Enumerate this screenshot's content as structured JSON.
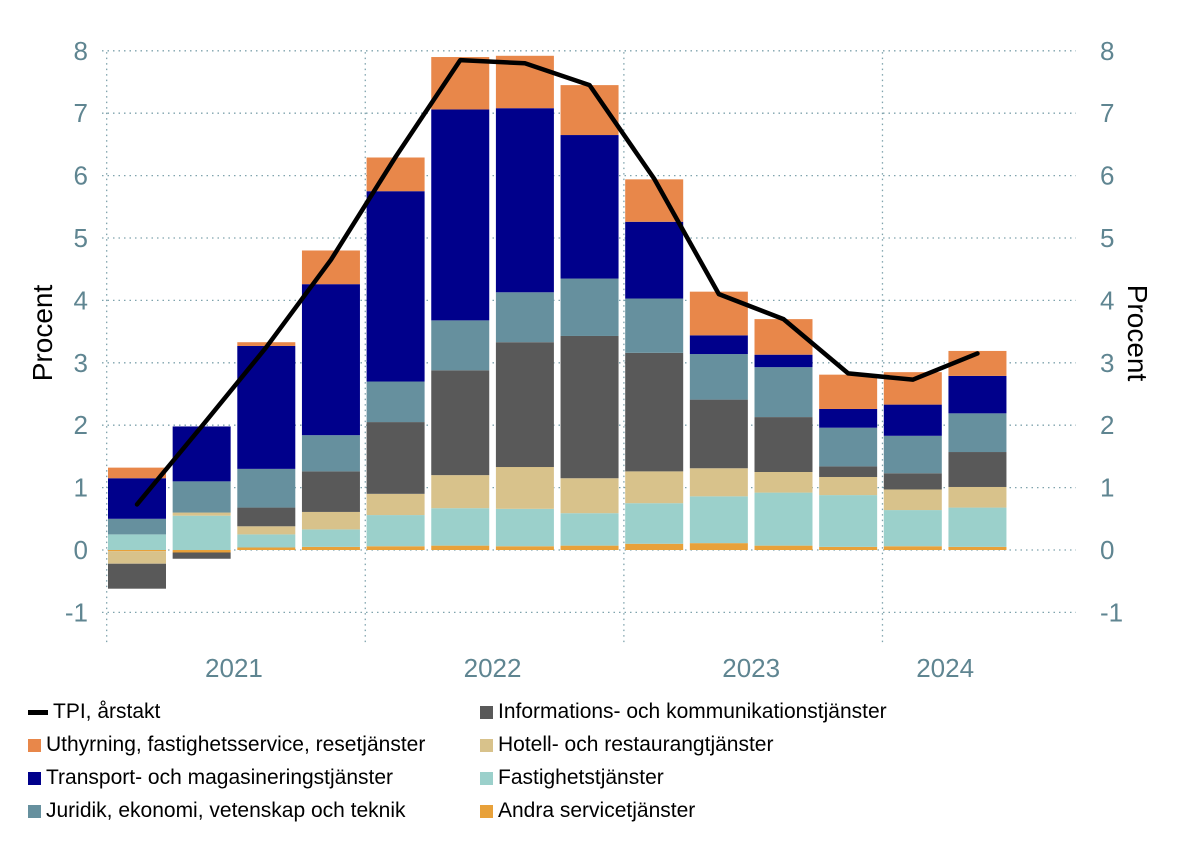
{
  "chart_data": {
    "type": "bar",
    "stacked": true,
    "ylabel_left": "Procent",
    "ylabel_right": "Procent",
    "ylim": [
      -1.3,
      8.3
    ],
    "yticks": [
      -1,
      0,
      1,
      2,
      3,
      4,
      5,
      6,
      7,
      8
    ],
    "ytick_labels": [
      "-1",
      "0",
      "1",
      "2",
      "3",
      "4",
      "5",
      "6",
      "7",
      "8"
    ],
    "year_labels": [
      "2021",
      "2022",
      "2023",
      "2024"
    ],
    "grid": "dotted horizontal",
    "legend_position": "bottom",
    "categories": [
      "2021 Q1",
      "2021 Q2",
      "2021 Q3",
      "2021 Q4",
      "2022 Q1",
      "2022 Q2",
      "2022 Q3",
      "2022 Q4",
      "2023 Q1",
      "2023 Q2",
      "2023 Q3",
      "2023 Q4",
      "2024 Q1",
      "2024 Q2"
    ],
    "series": [
      {
        "name": "Andra servicetjänster",
        "color": "#e8a13a",
        "values": [
          -0.02,
          -0.04,
          0.04,
          0.05,
          0.06,
          0.07,
          0.06,
          0.07,
          0.1,
          0.11,
          0.07,
          0.05,
          0.06,
          0.05
        ]
      },
      {
        "name": "Fastighetstjänster",
        "color": "#9bd0cb",
        "values": [
          0.25,
          0.55,
          0.21,
          0.28,
          0.5,
          0.6,
          0.6,
          0.52,
          0.65,
          0.75,
          0.85,
          0.83,
          0.58,
          0.63
        ]
      },
      {
        "name": "Hotell- och restaurangtjänster",
        "color": "#d8c28b",
        "values": [
          -0.2,
          0.05,
          0.13,
          0.28,
          0.34,
          0.53,
          0.67,
          0.56,
          0.51,
          0.45,
          0.33,
          0.29,
          0.33,
          0.33
        ]
      },
      {
        "name": "Informations- och kommunikationstjänster",
        "color": "#595959",
        "values": [
          -0.4,
          -0.1,
          0.3,
          0.65,
          1.15,
          1.68,
          2.0,
          2.28,
          1.9,
          1.1,
          0.88,
          0.17,
          0.26,
          0.56
        ]
      },
      {
        "name": "Juridik, ekonomi, vetenskap och teknik",
        "color": "#66909e",
        "values": [
          0.25,
          0.5,
          0.62,
          0.58,
          0.65,
          0.8,
          0.8,
          0.92,
          0.87,
          0.73,
          0.8,
          0.62,
          0.6,
          0.62
        ]
      },
      {
        "name": "Transport- och magasineringstjänster",
        "color": "#00008b",
        "values": [
          0.65,
          0.88,
          1.97,
          2.42,
          3.05,
          3.38,
          2.95,
          2.3,
          1.23,
          0.3,
          0.2,
          0.3,
          0.5,
          0.6
        ]
      },
      {
        "name": "Uthyrning, fastighetsservice, resetjänster",
        "color": "#e8874a",
        "values": [
          0.17,
          0.0,
          0.06,
          0.54,
          0.54,
          0.84,
          0.84,
          0.8,
          0.68,
          0.7,
          0.57,
          0.55,
          0.52,
          0.4
        ]
      }
    ],
    "line": {
      "name": "TPI, årstakt",
      "color": "#000000",
      "values": [
        0.73,
        1.98,
        3.25,
        4.65,
        6.3,
        7.85,
        7.8,
        7.45,
        5.95,
        4.1,
        3.7,
        2.83,
        2.73,
        3.15
      ]
    }
  },
  "legend": {
    "items": [
      {
        "key": "tpi",
        "label": "TPI, årstakt",
        "kind": "line",
        "color": "#000000"
      },
      {
        "key": "info",
        "label": "Informations- och kommunikationstjänster",
        "kind": "box",
        "color": "#595959"
      },
      {
        "key": "uth",
        "label": "Uthyrning, fastighetsservice, resetjänster",
        "kind": "box",
        "color": "#e8874a"
      },
      {
        "key": "hot",
        "label": "Hotell- och restaurangtjänster",
        "kind": "box",
        "color": "#d8c28b"
      },
      {
        "key": "tra",
        "label": "Transport- och magasineringstjänster",
        "kind": "box",
        "color": "#00008b"
      },
      {
        "key": "fas",
        "label": "Fastighetstjänster",
        "kind": "box",
        "color": "#9bd0cb"
      },
      {
        "key": "jur",
        "label": "Juridik, ekonomi, vetenskap och teknik",
        "kind": "box",
        "color": "#66909e"
      },
      {
        "key": "and",
        "label": "Andra servicetjänster",
        "kind": "box",
        "color": "#e8a13a"
      }
    ]
  }
}
